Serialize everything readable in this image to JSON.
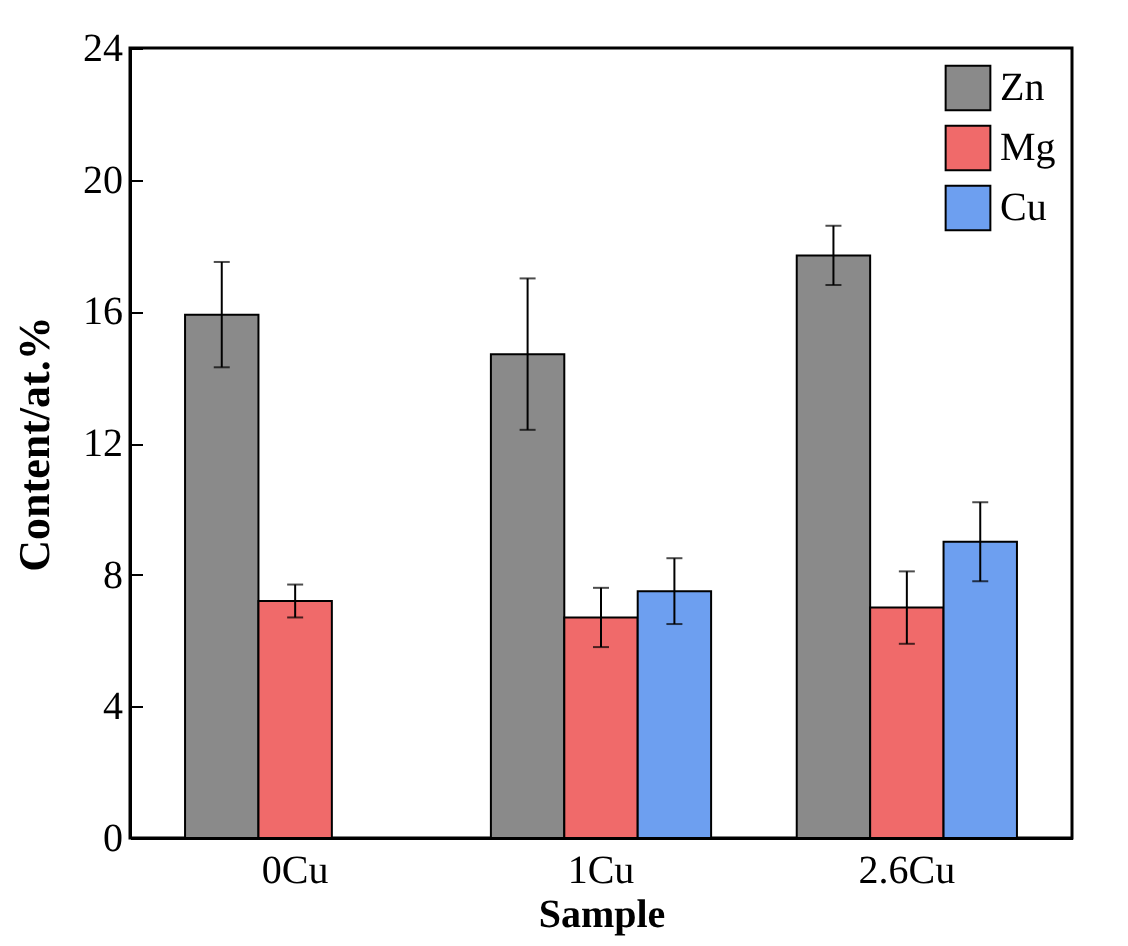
{
  "chart_data": {
    "type": "bar",
    "xlabel": "Sample",
    "ylabel": "Content/at.%",
    "categories": [
      "0Cu",
      "1Cu",
      "2.6Cu"
    ],
    "series": [
      {
        "name": "Zn",
        "color": "#8a8a8a",
        "values": [
          15.9,
          14.7,
          17.7
        ],
        "errors": [
          1.6,
          2.3,
          0.9
        ]
      },
      {
        "name": "Mg",
        "color": "#f06a6a",
        "values": [
          7.2,
          6.7,
          7.0
        ],
        "errors": [
          0.5,
          0.9,
          1.1
        ]
      },
      {
        "name": "Cu",
        "color": "#6d9ff0",
        "values": [
          null,
          7.5,
          9.0
        ],
        "errors": [
          null,
          1.0,
          1.2
        ]
      }
    ],
    "ylim": [
      0,
      24
    ],
    "yticks": [
      0,
      4,
      8,
      12,
      16,
      20,
      24
    ],
    "grid": false,
    "legend": "top right"
  }
}
